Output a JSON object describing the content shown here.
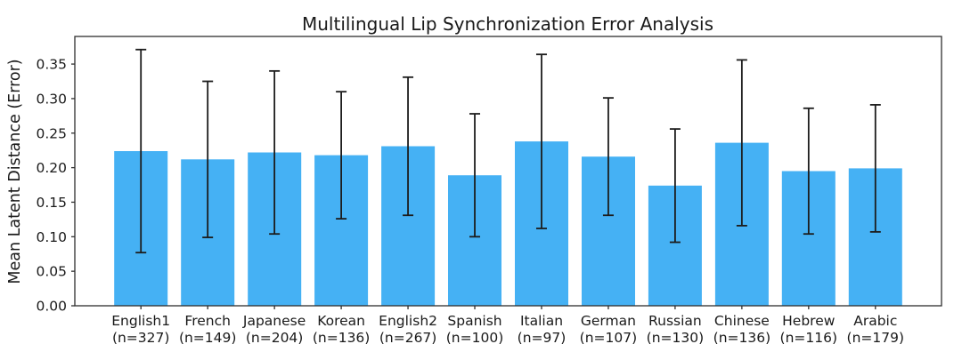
{
  "chart_data": {
    "type": "bar",
    "title": "Multilingual Lip Synchronization Error Analysis",
    "xlabel": "",
    "ylabel": "Mean Latent Distance (Error)",
    "categories": [
      "English1",
      "French",
      "Japanese",
      "Korean",
      "English2",
      "Spanish",
      "Italian",
      "German",
      "Russian",
      "Chinese",
      "Hebrew",
      "Arabic"
    ],
    "sample_sizes": [
      327,
      149,
      204,
      136,
      267,
      100,
      97,
      107,
      130,
      136,
      116,
      179
    ],
    "x_tick_labels": [
      {
        "line1": "English1",
        "line2": "(n=327)"
      },
      {
        "line1": "French",
        "line2": "(n=149)"
      },
      {
        "line1": "Japanese",
        "line2": "(n=204)"
      },
      {
        "line1": "Korean",
        "line2": "(n=136)"
      },
      {
        "line1": "English2",
        "line2": "(n=267)"
      },
      {
        "line1": "Spanish",
        "line2": "(n=100)"
      },
      {
        "line1": "Italian",
        "line2": "(n=97)"
      },
      {
        "line1": "German",
        "line2": "(n=107)"
      },
      {
        "line1": "Russian",
        "line2": "(n=130)"
      },
      {
        "line1": "Chinese",
        "line2": "(n=136)"
      },
      {
        "line1": "Hebrew",
        "line2": "(n=116)"
      },
      {
        "line1": "Arabic",
        "line2": "(n=179)"
      }
    ],
    "values": [
      0.224,
      0.212,
      0.222,
      0.218,
      0.231,
      0.189,
      0.238,
      0.216,
      0.174,
      0.236,
      0.195,
      0.199
    ],
    "errors": [
      0.147,
      0.113,
      0.118,
      0.092,
      0.1,
      0.089,
      0.126,
      0.085,
      0.082,
      0.12,
      0.091,
      0.092
    ],
    "y_ticks": [
      0.0,
      0.05,
      0.1,
      0.15,
      0.2,
      0.25,
      0.3,
      0.35
    ],
    "y_tick_labels": [
      "0.00",
      "0.05",
      "0.10",
      "0.15",
      "0.20",
      "0.25",
      "0.30",
      "0.35"
    ],
    "ylim": [
      0,
      0.39
    ],
    "grid": false,
    "legend": null,
    "bar_color": "#45B1F4",
    "error_bar_color": "#1c1c1c",
    "frame_color": "#2e2e2e"
  }
}
